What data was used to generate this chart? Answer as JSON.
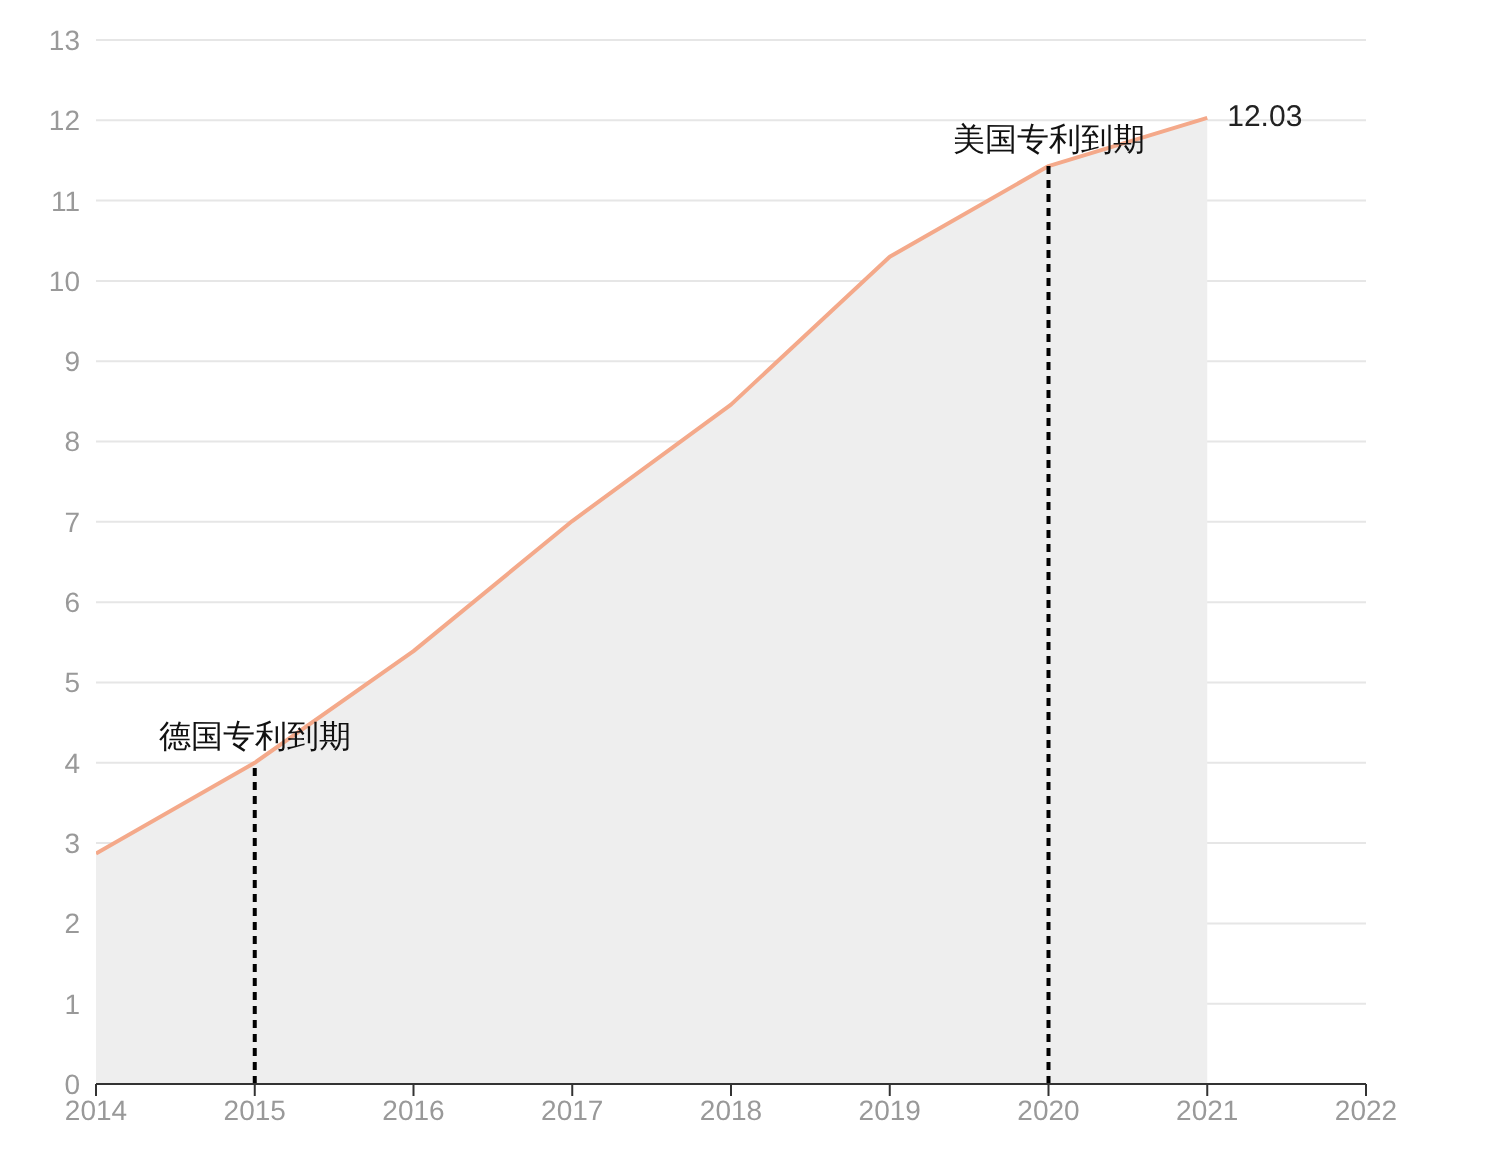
{
  "chart_data": {
    "type": "area",
    "x": [
      2014,
      2015,
      2016,
      2017,
      2018,
      2019,
      2020,
      2021
    ],
    "series": [
      {
        "color": "#f4a98a",
        "values": [
          2.87,
          4.0,
          5.39,
          7.01,
          8.46,
          10.3,
          11.43,
          12.03
        ],
        "value_labels": [
          null,
          null,
          null,
          null,
          null,
          null,
          null,
          "12.03"
        ]
      }
    ],
    "xlim": [
      2014,
      2022
    ],
    "xticks": [
      2014,
      2015,
      2016,
      2017,
      2018,
      2019,
      2020,
      2021,
      2022
    ],
    "ylim": [
      0,
      13
    ],
    "yticks": [
      0,
      1,
      2,
      3,
      4,
      5,
      6,
      7,
      8,
      9,
      10,
      11,
      12,
      13
    ],
    "grid": "y",
    "ref_lines": [
      {
        "axis": "x",
        "value": 2015,
        "label": "德国专利到期",
        "color": "#000000",
        "line_style": "dashed"
      },
      {
        "axis": "x",
        "value": 2020,
        "label": "美国专利到期",
        "color": "#000000",
        "line_style": "dashed"
      }
    ]
  }
}
